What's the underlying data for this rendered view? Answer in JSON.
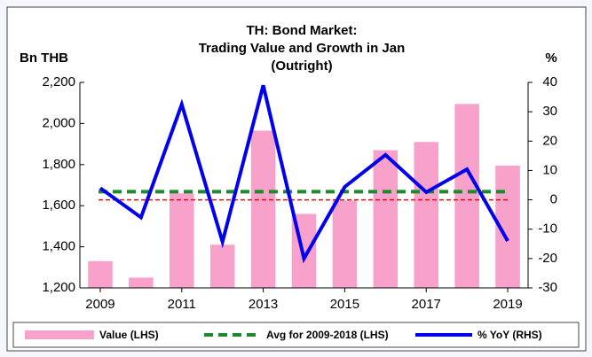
{
  "chart_data": {
    "type": "combo",
    "title": [
      "TH: Bond Market:",
      "Trading Value and Growth in Jan",
      "(Outright)"
    ],
    "y_label": "Bn THB",
    "y2_label": "%",
    "x": [
      2009,
      2010,
      2011,
      2012,
      2013,
      2014,
      2015,
      2016,
      2017,
      2018,
      2019
    ],
    "xlim": [
      2008.5,
      2019.5
    ],
    "xticks": [
      2009,
      2011,
      2013,
      2015,
      2017,
      2019
    ],
    "ylim": [
      1200,
      2200
    ],
    "yticks": [
      {
        "value": 1200,
        "label": "1,200"
      },
      {
        "value": 1400,
        "label": "1,400"
      },
      {
        "value": 1600,
        "label": "1,600"
      },
      {
        "value": 1800,
        "label": "1,800"
      },
      {
        "value": 2000,
        "label": "2,000"
      },
      {
        "value": 2200,
        "label": "2,200"
      }
    ],
    "y2lim": [
      -30,
      40
    ],
    "y2ticks": [
      -30,
      -20,
      -10,
      0,
      10,
      20,
      30,
      40
    ],
    "series": [
      {
        "name": "Value (LHS)",
        "type": "bar",
        "color": "#f7a1cb",
        "values": [
          1330,
          1250,
          1660,
          1410,
          1965,
          1560,
          1625,
          1870,
          1910,
          2095,
          1795
        ]
      },
      {
        "name": "% YoY (RHS)",
        "type": "line",
        "axis": "y2",
        "color": "#0000ee",
        "values": [
          4,
          -6,
          32.5,
          -14.3,
          39,
          -20,
          4.4,
          15.3,
          2.6,
          10.4,
          -14
        ]
      }
    ],
    "reference_lines": [
      {
        "name": "Avg for 2009-2018 (LHS)",
        "value": 1668,
        "color": "#1a8a2a"
      },
      {
        "axis": "y2",
        "value": 0,
        "color": "#ff0000"
      }
    ]
  }
}
